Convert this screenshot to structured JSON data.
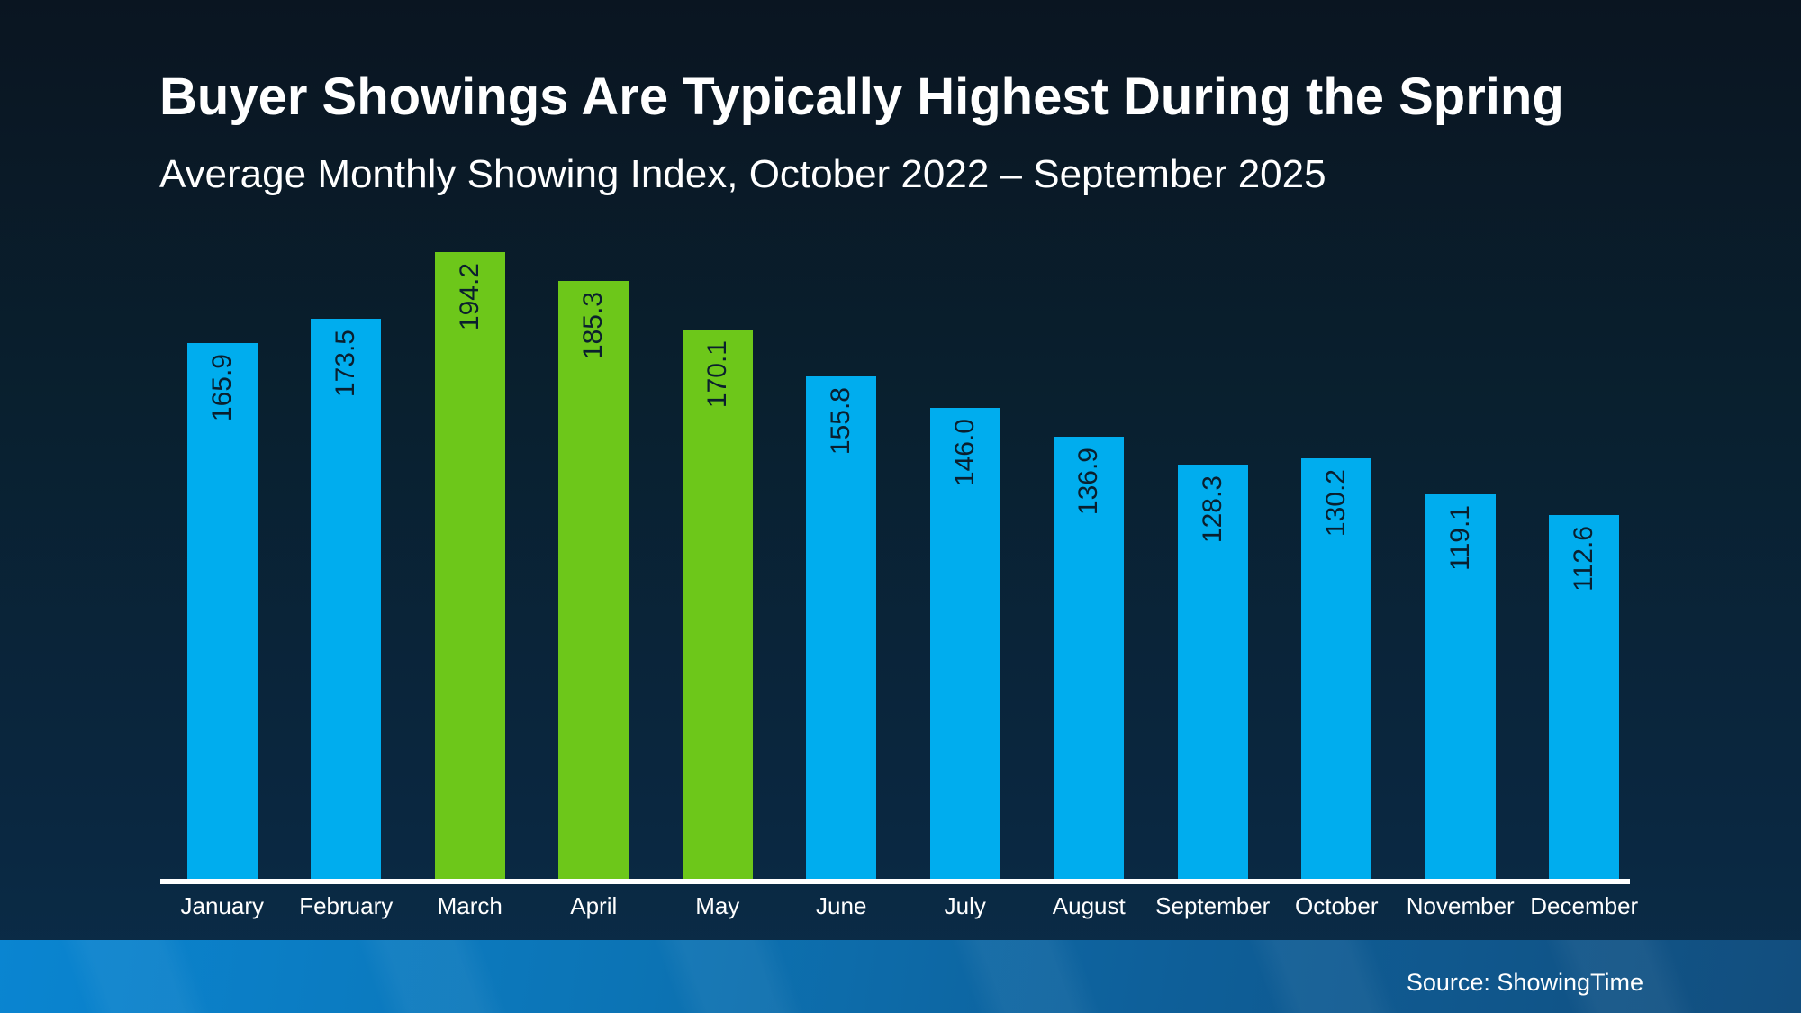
{
  "header": {
    "title": "Buyer Showings Are Typically Highest During the Spring",
    "subtitle": "Average Monthly Showing Index, October 2022 – September 2025"
  },
  "footer": {
    "source": "Source: ShowingTime"
  },
  "chart_data": {
    "type": "bar",
    "title": "Buyer Showings Are Typically Highest During the Spring",
    "subtitle": "Average Monthly Showing Index, October 2022 – September 2025",
    "categories": [
      "January",
      "February",
      "March",
      "April",
      "May",
      "June",
      "July",
      "August",
      "September",
      "October",
      "November",
      "December"
    ],
    "values": [
      165.9,
      173.5,
      194.2,
      185.3,
      170.1,
      155.8,
      146.0,
      136.9,
      128.3,
      130.2,
      119.1,
      112.6
    ],
    "highlighted_categories": [
      "March",
      "April",
      "May"
    ],
    "value_label_decimals": 1,
    "value_label_rotation_deg": -90,
    "value_label_position": "inside-top",
    "ylim": [
      0,
      200
    ],
    "grid": false,
    "legend": "none",
    "colors": {
      "bar": "#00adee",
      "bar_highlight": "#6dc71a",
      "value_label": "#0a1f2e",
      "axis_line": "#ffffff",
      "category_label": "#ffffff"
    }
  }
}
